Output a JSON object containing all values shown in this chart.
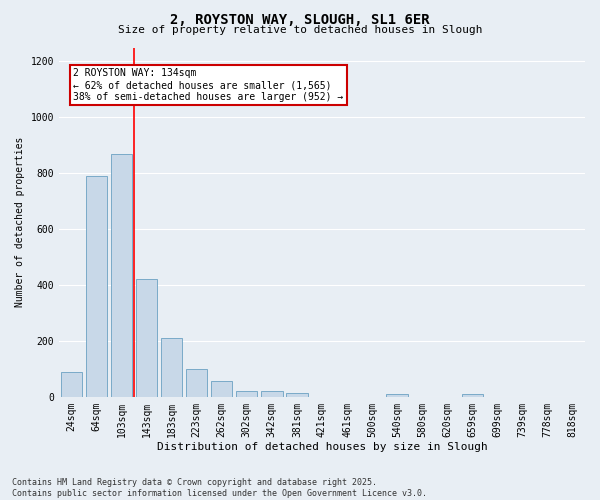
{
  "title_line1": "2, ROYSTON WAY, SLOUGH, SL1 6ER",
  "title_line2": "Size of property relative to detached houses in Slough",
  "xlabel": "Distribution of detached houses by size in Slough",
  "ylabel": "Number of detached properties",
  "categories": [
    "24sqm",
    "64sqm",
    "103sqm",
    "143sqm",
    "183sqm",
    "223sqm",
    "262sqm",
    "302sqm",
    "342sqm",
    "381sqm",
    "421sqm",
    "461sqm",
    "500sqm",
    "540sqm",
    "580sqm",
    "620sqm",
    "659sqm",
    "699sqm",
    "739sqm",
    "778sqm",
    "818sqm"
  ],
  "values": [
    90,
    790,
    870,
    420,
    210,
    100,
    55,
    20,
    20,
    15,
    0,
    0,
    0,
    10,
    0,
    0,
    10,
    0,
    0,
    0,
    0
  ],
  "bar_color": "#c8d8e8",
  "bar_edge_color": "#7aaac8",
  "bg_color": "#e8eef4",
  "grid_color": "#ffffff",
  "red_line_x": 2.5,
  "annotation_text": "2 ROYSTON WAY: 134sqm\n← 62% of detached houses are smaller (1,565)\n38% of semi-detached houses are larger (952) →",
  "annotation_box_color": "#ffffff",
  "annotation_box_edge": "#cc0000",
  "ylim": [
    0,
    1250
  ],
  "yticks": [
    0,
    200,
    400,
    600,
    800,
    1000,
    1200
  ],
  "footer_line1": "Contains HM Land Registry data © Crown copyright and database right 2025.",
  "footer_line2": "Contains public sector information licensed under the Open Government Licence v3.0.",
  "title_fontsize": 10,
  "subtitle_fontsize": 8,
  "xlabel_fontsize": 8,
  "ylabel_fontsize": 7,
  "tick_fontsize": 7,
  "footer_fontsize": 6,
  "ann_fontsize": 7
}
